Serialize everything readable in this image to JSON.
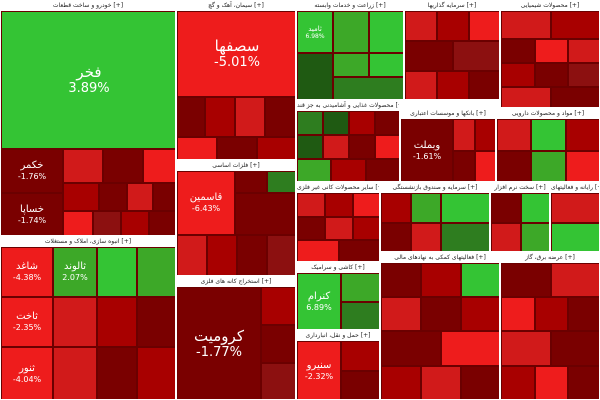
{
  "sections": [
    {
      "title": "خودرو و ساخت قطعات [+]"
    },
    {
      "title": "سیمان، آهک و گچ [+]"
    },
    {
      "title": "زراعت و خدمات وابسته [+]"
    },
    {
      "title": "سرمایه گذاریها [+]"
    },
    {
      "title": "محصولات شیمیایی [+]"
    },
    {
      "title": "محصولات غذایی و آشامیدنی به جز قند [+]"
    },
    {
      "title": "بانکها و موسسات اعتباری [+]"
    },
    {
      "title": "مواد و محصولات دارویی [+]"
    },
    {
      "title": "فلزات اساسی [+]"
    },
    {
      "title": "سایر محصولات کانی غیر فلزی [+]"
    },
    {
      "title": "سرمایه و صندوق بازنشستگی [+]"
    },
    {
      "title": "سخت نرم افزار [+]"
    },
    {
      "title": "رایانه و فعالیتهای [+]"
    },
    {
      "title": "انبوه سازی، املاک و مستغلات [+]"
    },
    {
      "title": "استخراج کانه های فلزی [+]"
    },
    {
      "title": "کاشی و سرامیک [+]"
    },
    {
      "title": "فعالیتهای کمکی به نهادهای مالی [+]"
    },
    {
      "title": "حمل و نقل، انبارداری [+]"
    },
    {
      "title": "عرضه برق، گاز [+]"
    }
  ],
  "tiles": [
    {
      "name": "فخر",
      "pct": "3.89%"
    },
    {
      "name": "سصفها",
      "pct": "-5.01%"
    },
    {
      "name": "قاسمین",
      "pct": "-6.43%"
    },
    {
      "name": "کرومیت",
      "pct": "-1.77%"
    },
    {
      "name": "خکمر",
      "pct": "-1.76%"
    },
    {
      "name": "خساپا",
      "pct": "-1.74%"
    },
    {
      "name": "شاغد",
      "pct": "-4.38%"
    },
    {
      "name": "ثاخت",
      "pct": "-2.35%"
    },
    {
      "name": "ثالوند",
      "pct": "2.07%"
    },
    {
      "name": "کنرام",
      "pct": "6.89%"
    },
    {
      "name": "وبملت",
      "pct": "-1.61%"
    },
    {
      "name": "سنیرو",
      "pct": "-2.32%"
    },
    {
      "name": "ثامید",
      "pct": "6.98%"
    },
    {
      "name": "ثنور",
      "pct": "-4.04%"
    }
  ]
}
